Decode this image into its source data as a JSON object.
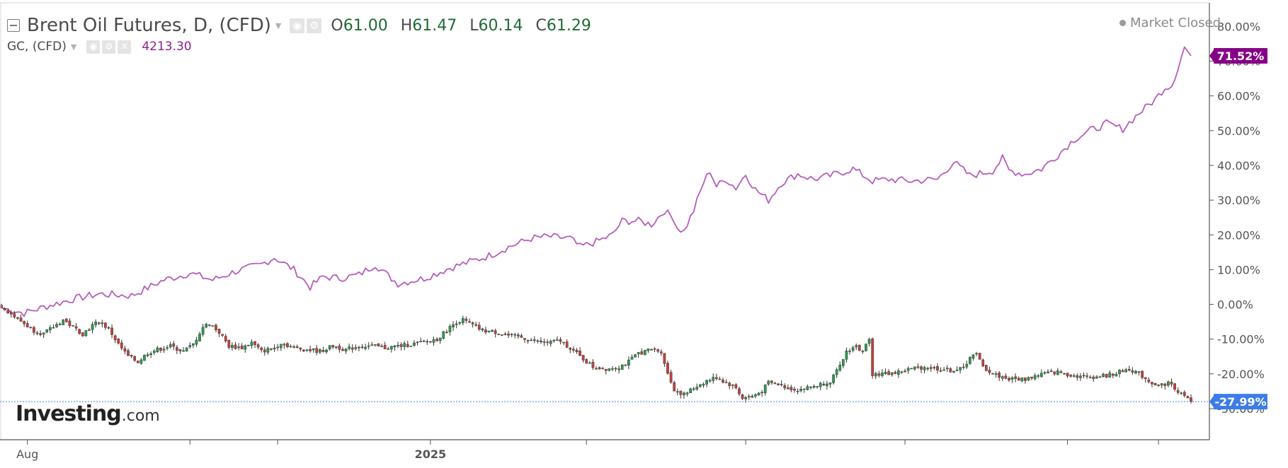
{
  "legend": {
    "main": {
      "title": "Brent Oil Futures, D, (CFD)",
      "open_label": "O",
      "open": "61.00",
      "high_label": "H",
      "high": "61.47",
      "low_label": "L",
      "low": "60.14",
      "close_label": "C",
      "close": "61.29"
    },
    "compare": {
      "title": "GC, (CFD)",
      "value": "4213.30"
    }
  },
  "status": {
    "market": "Market Closed"
  },
  "logo": {
    "brand": "Investing",
    "domain": ".com"
  },
  "icons": {
    "collapse": "collapse-icon",
    "dropdown": "chevron-down-icon",
    "visibility": "eye-icon",
    "settings": "gear-icon",
    "remove": "close-icon"
  },
  "colors": {
    "up_candle": "#2e9e4f",
    "down_candle": "#c9413a",
    "gold_line": "#b45fba",
    "gold_badge": "#850085",
    "brent_badge": "#3d7ce8",
    "grid": "#888888"
  },
  "chart_data": {
    "type": "line",
    "ylabel": "",
    "y_unit": "%",
    "ylim": [
      -33,
      85
    ],
    "y_ticks": [
      "80.00%",
      "70.00%",
      "60.00%",
      "50.00%",
      "40.00%",
      "30.00%",
      "20.00%",
      "10.00%",
      "0.00%",
      "-10.00%",
      "-20.00%",
      "-30.00%"
    ],
    "x_ticks": [
      {
        "label": "Aug",
        "i": 8
      },
      {
        "label": "",
        "i": 58
      },
      {
        "label": "",
        "i": 85
      },
      {
        "label": "2025",
        "i": 132
      },
      {
        "label": "",
        "i": 180
      },
      {
        "label": "",
        "i": 229
      },
      {
        "label": "",
        "i": 278
      },
      {
        "label": "",
        "i": 328
      },
      {
        "label": "",
        "i": 356
      }
    ],
    "n_days": 367,
    "series": [
      {
        "name": "GC, (CFD)",
        "style": "line",
        "last_label": "71.52%",
        "key_points": [
          [
            0,
            -1.0
          ],
          [
            7,
            -2.5
          ],
          [
            14,
            -0.5
          ],
          [
            22,
            1.5
          ],
          [
            30,
            3.0
          ],
          [
            40,
            2.5
          ],
          [
            50,
            7.0
          ],
          [
            58,
            9.0
          ],
          [
            65,
            7.0
          ],
          [
            72,
            9.5
          ],
          [
            80,
            11.5
          ],
          [
            84,
            13.5
          ],
          [
            90,
            10.0
          ],
          [
            95,
            5.0
          ],
          [
            99,
            8.0
          ],
          [
            104,
            7.5
          ],
          [
            110,
            8.5
          ],
          [
            115,
            11.5
          ],
          [
            118,
            9.0
          ],
          [
            122,
            6.0
          ],
          [
            130,
            7.5
          ],
          [
            138,
            10.5
          ],
          [
            145,
            12.5
          ],
          [
            150,
            14.0
          ],
          [
            156,
            16.5
          ],
          [
            163,
            19.0
          ],
          [
            168,
            19.5
          ],
          [
            175,
            19.0
          ],
          [
            178,
            16.5
          ],
          [
            183,
            18.0
          ],
          [
            188,
            20.0
          ],
          [
            191,
            24.0
          ],
          [
            196,
            24.0
          ],
          [
            200,
            23.0
          ],
          [
            204,
            27.0
          ],
          [
            207,
            24.5
          ],
          [
            208,
            22.0
          ],
          [
            210,
            21.0
          ],
          [
            213,
            27.0
          ],
          [
            216,
            35.0
          ],
          [
            218,
            38.5
          ],
          [
            220,
            34.0
          ],
          [
            223,
            36.0
          ],
          [
            226,
            33.5
          ],
          [
            229,
            37.5
          ],
          [
            232,
            33.0
          ],
          [
            236,
            30.0
          ],
          [
            240,
            35.0
          ],
          [
            245,
            37.5
          ],
          [
            250,
            36.0
          ],
          [
            255,
            37.0
          ],
          [
            262,
            39.0
          ],
          [
            268,
            35.5
          ],
          [
            273,
            36.0
          ],
          [
            280,
            35.5
          ],
          [
            288,
            36.0
          ],
          [
            293,
            41.0
          ],
          [
            298,
            37.0
          ],
          [
            305,
            38.5
          ],
          [
            308,
            42.0
          ],
          [
            310,
            38.5
          ],
          [
            315,
            37.5
          ],
          [
            320,
            39.0
          ],
          [
            325,
            43.0
          ],
          [
            330,
            47.5
          ],
          [
            335,
            50.0
          ],
          [
            340,
            52.0
          ],
          [
            345,
            50.5
          ],
          [
            350,
            55.0
          ],
          [
            355,
            59.0
          ],
          [
            358,
            62.5
          ],
          [
            360,
            63.0
          ],
          [
            362,
            68.0
          ],
          [
            364,
            74.0
          ],
          [
            366,
            71.52
          ]
        ]
      },
      {
        "name": "Brent Oil Futures, D, (CFD)",
        "style": "candlestick",
        "last_label": "-27.99%",
        "key_points": [
          [
            0,
            -0.5
          ],
          [
            4,
            -3.5
          ],
          [
            7,
            -5.5
          ],
          [
            10,
            -7.5
          ],
          [
            13,
            -8.5
          ],
          [
            16,
            -6.5
          ],
          [
            19,
            -4.5
          ],
          [
            22,
            -6.5
          ],
          [
            25,
            -8.5
          ],
          [
            28,
            -6.0
          ],
          [
            30,
            -5.0
          ],
          [
            33,
            -7.0
          ],
          [
            36,
            -11.5
          ],
          [
            39,
            -15.0
          ],
          [
            42,
            -16.5
          ],
          [
            45,
            -14.0
          ],
          [
            48,
            -13.0
          ],
          [
            52,
            -12.0
          ],
          [
            56,
            -13.5
          ],
          [
            59,
            -11.5
          ],
          [
            62,
            -6.5
          ],
          [
            64,
            -5.5
          ],
          [
            67,
            -8.0
          ],
          [
            70,
            -12.0
          ],
          [
            74,
            -12.5
          ],
          [
            77,
            -11.0
          ],
          [
            80,
            -13.5
          ],
          [
            84,
            -12.5
          ],
          [
            86,
            -11.0
          ],
          [
            90,
            -12.5
          ],
          [
            94,
            -13.0
          ],
          [
            98,
            -13.5
          ],
          [
            102,
            -12.0
          ],
          [
            106,
            -13.0
          ],
          [
            110,
            -12.0
          ],
          [
            114,
            -12.0
          ],
          [
            118,
            -12.5
          ],
          [
            122,
            -12.0
          ],
          [
            126,
            -11.5
          ],
          [
            130,
            -11.0
          ],
          [
            134,
            -10.0
          ],
          [
            137,
            -7.5
          ],
          [
            140,
            -5.0
          ],
          [
            142,
            -4.5
          ],
          [
            145,
            -6.0
          ],
          [
            148,
            -7.5
          ],
          [
            152,
            -8.0
          ],
          [
            156,
            -9.0
          ],
          [
            160,
            -9.5
          ],
          [
            164,
            -10.5
          ],
          [
            168,
            -11.0
          ],
          [
            172,
            -10.5
          ],
          [
            175,
            -12.5
          ],
          [
            178,
            -15.0
          ],
          [
            182,
            -18.0
          ],
          [
            186,
            -18.5
          ],
          [
            190,
            -18.0
          ],
          [
            193,
            -16.5
          ],
          [
            196,
            -14.0
          ],
          [
            200,
            -13.0
          ],
          [
            203,
            -13.5
          ],
          [
            205,
            -20.0
          ],
          [
            207,
            -24.5
          ],
          [
            210,
            -26.0
          ],
          [
            214,
            -23.5
          ],
          [
            217,
            -22.0
          ],
          [
            220,
            -21.0
          ],
          [
            223,
            -22.5
          ],
          [
            226,
            -24.0
          ],
          [
            228,
            -27.0
          ],
          [
            231,
            -26.5
          ],
          [
            234,
            -25.0
          ],
          [
            236,
            -22.5
          ],
          [
            239,
            -23.0
          ],
          [
            242,
            -24.0
          ],
          [
            245,
            -24.5
          ],
          [
            248,
            -24.0
          ],
          [
            252,
            -23.0
          ],
          [
            255,
            -22.0
          ],
          [
            258,
            -18.0
          ],
          [
            260,
            -13.5
          ],
          [
            263,
            -12.0
          ],
          [
            265,
            -14.0
          ],
          [
            267,
            -9.5
          ],
          [
            268,
            -20.0
          ],
          [
            272,
            -20.0
          ],
          [
            276,
            -19.5
          ],
          [
            280,
            -18.5
          ],
          [
            284,
            -18.0
          ],
          [
            288,
            -18.5
          ],
          [
            292,
            -19.0
          ],
          [
            296,
            -18.5
          ],
          [
            298,
            -15.0
          ],
          [
            300,
            -14.5
          ],
          [
            302,
            -18.0
          ],
          [
            305,
            -20.0
          ],
          [
            310,
            -21.5
          ],
          [
            315,
            -21.5
          ],
          [
            320,
            -20.0
          ],
          [
            325,
            -19.5
          ],
          [
            330,
            -20.5
          ],
          [
            335,
            -21.0
          ],
          [
            340,
            -20.5
          ],
          [
            344,
            -19.5
          ],
          [
            347,
            -18.5
          ],
          [
            350,
            -20.0
          ],
          [
            353,
            -22.0
          ],
          [
            356,
            -23.5
          ],
          [
            359,
            -22.5
          ],
          [
            362,
            -25.0
          ],
          [
            364,
            -26.5
          ],
          [
            366,
            -27.99
          ]
        ]
      }
    ]
  }
}
